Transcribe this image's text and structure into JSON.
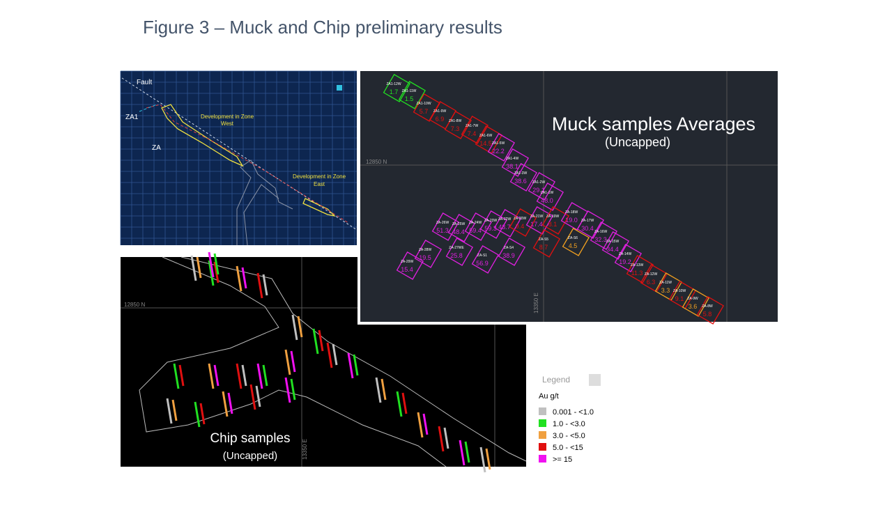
{
  "header": {
    "title": "Figure 3 – Muck and Chip preliminary results"
  },
  "plan_panel": {
    "labels": {
      "fault": "Fault",
      "za1": "ZA1",
      "za": "ZA",
      "west": [
        "Development in Zone",
        "West"
      ],
      "east": [
        "Development in Zone",
        "East"
      ]
    }
  },
  "muck_panel": {
    "title": "Muck samples Averages",
    "subtitle": "(Uncapped)",
    "northing": "12850 N",
    "easting": "13350 E",
    "samples": [
      {
        "id": "ZA1-12W",
        "value": "1.7",
        "color": "#21e021"
      },
      {
        "id": "ZA1-11W",
        "value": "1.5",
        "color": "#21e021"
      },
      {
        "id": "ZA1-10W",
        "value": "5.7",
        "color": "#e01010"
      },
      {
        "id": "ZA1-9W",
        "value": "6.9",
        "color": "#e01010"
      },
      {
        "id": "ZA1-8W",
        "value": "7.3",
        "color": "#e01010"
      },
      {
        "id": "ZA1-7W",
        "value": "7.4",
        "color": "#e01010"
      },
      {
        "id": "ZA1-6W",
        "value": "14.5",
        "color": "#e01010"
      },
      {
        "id": "ZA1-5W",
        "value": "22.2",
        "color": "#e020e0"
      },
      {
        "id": "ZA1-4W",
        "value": "38.1",
        "color": "#e020e0"
      },
      {
        "id": "ZA1-3W",
        "value": "38.6",
        "color": "#e020e0"
      },
      {
        "id": "ZA1-2W",
        "value": "29.1",
        "color": "#e020e0"
      },
      {
        "id": "ZA1-1W",
        "value": "48.0",
        "color": "#e020e0"
      },
      {
        "id": "ZA-26W",
        "value": "51.3",
        "color": "#e020e0"
      },
      {
        "id": "ZA-25W",
        "value": "48.4",
        "color": "#e020e0"
      },
      {
        "id": "ZA-24W",
        "value": "59.4",
        "color": "#e020e0"
      },
      {
        "id": "ZA-23W",
        "value": "59.3",
        "color": "#e020e0"
      },
      {
        "id": "ZA-22W",
        "value": "43.7",
        "color": "#e020e0"
      },
      {
        "id": "ZA-20W",
        "value": "9.4",
        "color": "#e01010"
      },
      {
        "id": "ZA-21W",
        "value": "17.4",
        "color": "#e020e0"
      },
      {
        "id": "ZA-19W",
        "value": "8.1",
        "color": "#e01010"
      },
      {
        "id": "ZA-18W",
        "value": "19.0",
        "color": "#e020e0"
      },
      {
        "id": "ZA-17W",
        "value": "30.4",
        "color": "#e020e0"
      },
      {
        "id": "ZA-16W",
        "value": "32.3",
        "color": "#e020e0"
      },
      {
        "id": "ZA-15W",
        "value": "34.4",
        "color": "#e020e0"
      },
      {
        "id": "ZA-14W",
        "value": "19.2",
        "color": "#e020e0"
      },
      {
        "id": "ZA-13W",
        "value": "11.3",
        "color": "#e01010"
      },
      {
        "id": "ZA-12W",
        "value": "6.3",
        "color": "#e01010"
      },
      {
        "id": "ZA-11W",
        "value": "3.3",
        "color": "#f0a020"
      },
      {
        "id": "ZA-10W",
        "value": "9.1",
        "color": "#e01010"
      },
      {
        "id": "ZA-9W",
        "value": "3.6",
        "color": "#f0a020"
      },
      {
        "id": "ZA-8W",
        "value": "5.8",
        "color": "#e01010"
      },
      {
        "id": "ZA-29W",
        "value": "15.4",
        "color": "#e020e0"
      },
      {
        "id": "ZA-28W",
        "value": "19.5",
        "color": "#e020e0"
      },
      {
        "id": "ZA-27WE",
        "value": "25.8",
        "color": "#e020e0"
      },
      {
        "id": "ZA-S1",
        "value": "56.9",
        "color": "#e020e0"
      },
      {
        "id": "ZA-S4",
        "value": "38.9",
        "color": "#e020e0"
      },
      {
        "id": "ZA-S5",
        "value": "8.7",
        "color": "#e01010"
      },
      {
        "id": "ZA-S6",
        "value": "4.5",
        "color": "#f0a020"
      }
    ]
  },
  "chip_panel": {
    "title": "Chip samples",
    "subtitle": "(Uncapped)",
    "northing": "12850 N",
    "easting": "13350 E"
  },
  "legend": {
    "title": "Legend",
    "unit": "Au g/t",
    "items": [
      {
        "label": "0.001 - <1.0",
        "color": "#c0c0c0"
      },
      {
        "label": "1.0 - <3.0",
        "color": "#21e021"
      },
      {
        "label": "3.0 - <5.0",
        "color": "#f0a040"
      },
      {
        "label": "5.0 - <15",
        "color": "#e01010"
      },
      {
        "label": ">= 15",
        "color": "#f010f0"
      }
    ]
  }
}
